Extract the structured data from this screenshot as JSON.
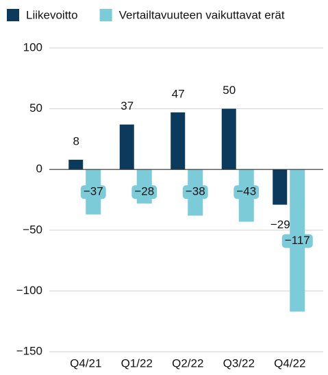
{
  "chart_data": {
    "type": "bar",
    "categories": [
      "Q4/21",
      "Q1/22",
      "Q2/22",
      "Q3/22",
      "Q4/22"
    ],
    "series": [
      {
        "name": "Liikevoitto",
        "color": "#0b3a5c",
        "values": [
          8,
          37,
          47,
          50,
          -29
        ],
        "value_labels": [
          "8",
          "37",
          "47",
          "50",
          "−29"
        ]
      },
      {
        "name": "Vertailtavuuteen vaikuttavat erät",
        "color": "#7ccbd9",
        "values": [
          -37,
          -28,
          -38,
          -43,
          -117
        ],
        "value_labels": [
          "−37",
          "−28",
          "−38",
          "−43",
          "−117"
        ]
      }
    ],
    "ylim": [
      -150,
      100
    ],
    "yticks": [
      {
        "value": -150,
        "label": "−150"
      },
      {
        "value": -100,
        "label": "−100"
      },
      {
        "value": -50,
        "label": "−50"
      },
      0,
      50,
      100
    ],
    "grid": true,
    "legend": "top"
  }
}
